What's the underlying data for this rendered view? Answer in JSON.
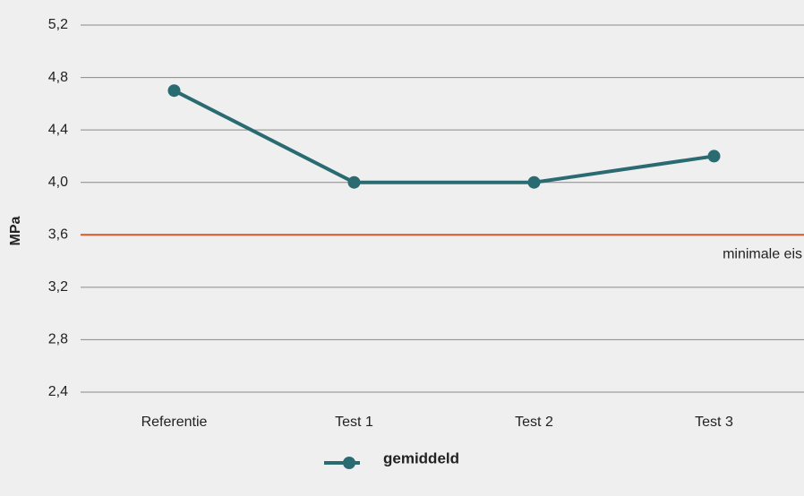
{
  "chart_data": {
    "type": "line",
    "y_label": "MPa",
    "categories": [
      "Referentie",
      "Test 1",
      "Test 2",
      "Test 3"
    ],
    "series": [
      {
        "name": "gemiddeld",
        "color": "#2a6b72",
        "values": [
          4.7,
          4.0,
          4.0,
          4.2
        ]
      }
    ],
    "ylim": [
      2.4,
      5.2
    ],
    "yticks": [
      {
        "value": 2.4,
        "label": "2,4"
      },
      {
        "value": 2.8,
        "label": "2,8"
      },
      {
        "value": 3.2,
        "label": "3,2"
      },
      {
        "value": 3.6,
        "label": "3,6"
      },
      {
        "value": 4.0,
        "label": "4,0"
      },
      {
        "value": 4.4,
        "label": "4,4"
      },
      {
        "value": 4.8,
        "label": "4,8"
      },
      {
        "value": 5.2,
        "label": "5,2"
      }
    ],
    "grid": true,
    "reference_lines": [
      {
        "value": 3.6,
        "label": "minimale eis",
        "color": "#d4582a"
      }
    ],
    "legend": "bottom"
  }
}
